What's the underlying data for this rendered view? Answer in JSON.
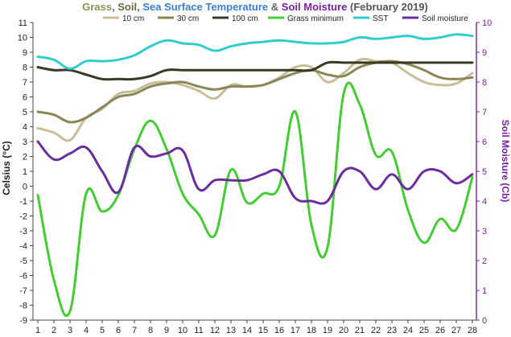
{
  "chart_data": {
    "type": "line",
    "title_parts": [
      {
        "text": "Grass",
        "color": "#8f8f55"
      },
      {
        "text": ", ",
        "color": "#666666"
      },
      {
        "text": "Soil",
        "color": "#6b6b3a"
      },
      {
        "text": ", ",
        "color": "#666666"
      },
      {
        "text": "Sea Surface Temperature",
        "color": "#3a7fd5"
      },
      {
        "text": " & ",
        "color": "#666666"
      },
      {
        "text": "Soil Moisture",
        "color": "#7b1fa2"
      },
      {
        "text": " (February 2019)",
        "color": "#555555"
      }
    ],
    "ylabel_left": "Celsius (°C)",
    "ylabel_right": "Soil Moisture (Cb)",
    "x": [
      1,
      2,
      3,
      4,
      5,
      6,
      7,
      8,
      9,
      10,
      11,
      12,
      13,
      14,
      15,
      16,
      17,
      18,
      19,
      20,
      21,
      22,
      23,
      24,
      25,
      26,
      27,
      28
    ],
    "ylim_left": [
      -9,
      11
    ],
    "ylim_right": [
      0,
      10
    ],
    "left_ticks": [
      -9,
      -8,
      -7,
      -6,
      -5,
      -4,
      -3,
      -2,
      -1,
      0,
      1,
      2,
      3,
      4,
      5,
      6,
      7,
      8,
      9,
      10,
      11
    ],
    "right_ticks": [
      0,
      1,
      2,
      3,
      4,
      5,
      6,
      7,
      8,
      9,
      10
    ],
    "grid": false,
    "legend_position": "top",
    "series": [
      {
        "name": "10 cm",
        "axis": "left",
        "color": "#c8bd97",
        "values": [
          3.9,
          3.6,
          3.1,
          4.6,
          5.2,
          6.2,
          6.4,
          6.9,
          7.0,
          6.8,
          6.4,
          5.9,
          6.8,
          6.7,
          6.8,
          7.3,
          8.0,
          8.0,
          7.0,
          7.6,
          8.5,
          8.4,
          8.3,
          7.6,
          7.0,
          6.8,
          6.9,
          7.6
        ]
      },
      {
        "name": "30 cm",
        "axis": "left",
        "color": "#8a8657",
        "values": [
          5.0,
          4.8,
          4.3,
          4.6,
          5.3,
          6.0,
          6.2,
          6.7,
          6.9,
          7.0,
          6.7,
          6.5,
          6.7,
          6.7,
          6.8,
          7.2,
          7.6,
          7.8,
          7.5,
          7.4,
          8.0,
          8.3,
          8.4,
          8.2,
          7.8,
          7.3,
          7.2,
          7.3
        ]
      },
      {
        "name": "100 cm",
        "axis": "left",
        "color": "#3b3822",
        "values": [
          8.0,
          7.8,
          7.8,
          7.5,
          7.2,
          7.2,
          7.2,
          7.4,
          7.8,
          7.8,
          7.8,
          7.8,
          7.8,
          7.8,
          7.8,
          7.8,
          7.8,
          7.8,
          8.3,
          8.3,
          8.3,
          8.3,
          8.3,
          8.3,
          8.3,
          8.3,
          8.3,
          8.3
        ]
      },
      {
        "name": "Grass minimum",
        "axis": "left",
        "color": "#44cc33",
        "values": [
          -0.6,
          -6.3,
          -8.4,
          -0.5,
          -1.7,
          -0.6,
          2.5,
          4.4,
          2.5,
          -0.5,
          -1.9,
          -3.3,
          1.1,
          -1.1,
          -0.5,
          0.0,
          5.0,
          -2.6,
          -4.1,
          6.2,
          5.5,
          2.1,
          2.3,
          -1.6,
          -3.8,
          -2.2,
          -2.9,
          0.6
        ]
      },
      {
        "name": "SST",
        "axis": "left",
        "color": "#33cccc",
        "values": [
          8.7,
          8.5,
          7.9,
          8.4,
          8.4,
          8.5,
          8.8,
          9.4,
          9.8,
          9.6,
          9.5,
          9.1,
          9.4,
          9.6,
          9.7,
          9.8,
          9.7,
          9.6,
          9.6,
          9.7,
          10.0,
          9.9,
          10.0,
          10.1,
          9.9,
          10.0,
          10.2,
          10.1
        ]
      },
      {
        "name": "Soil moisture",
        "axis": "right",
        "color": "#6b2d9e",
        "values": [
          6.0,
          5.4,
          5.6,
          5.8,
          5.0,
          4.3,
          5.8,
          5.5,
          5.6,
          5.7,
          4.4,
          4.7,
          4.7,
          4.7,
          4.9,
          5.0,
          4.1,
          4.0,
          4.0,
          5.0,
          5.0,
          4.4,
          4.9,
          4.4,
          5.0,
          5.0,
          4.6,
          4.9
        ]
      }
    ]
  }
}
